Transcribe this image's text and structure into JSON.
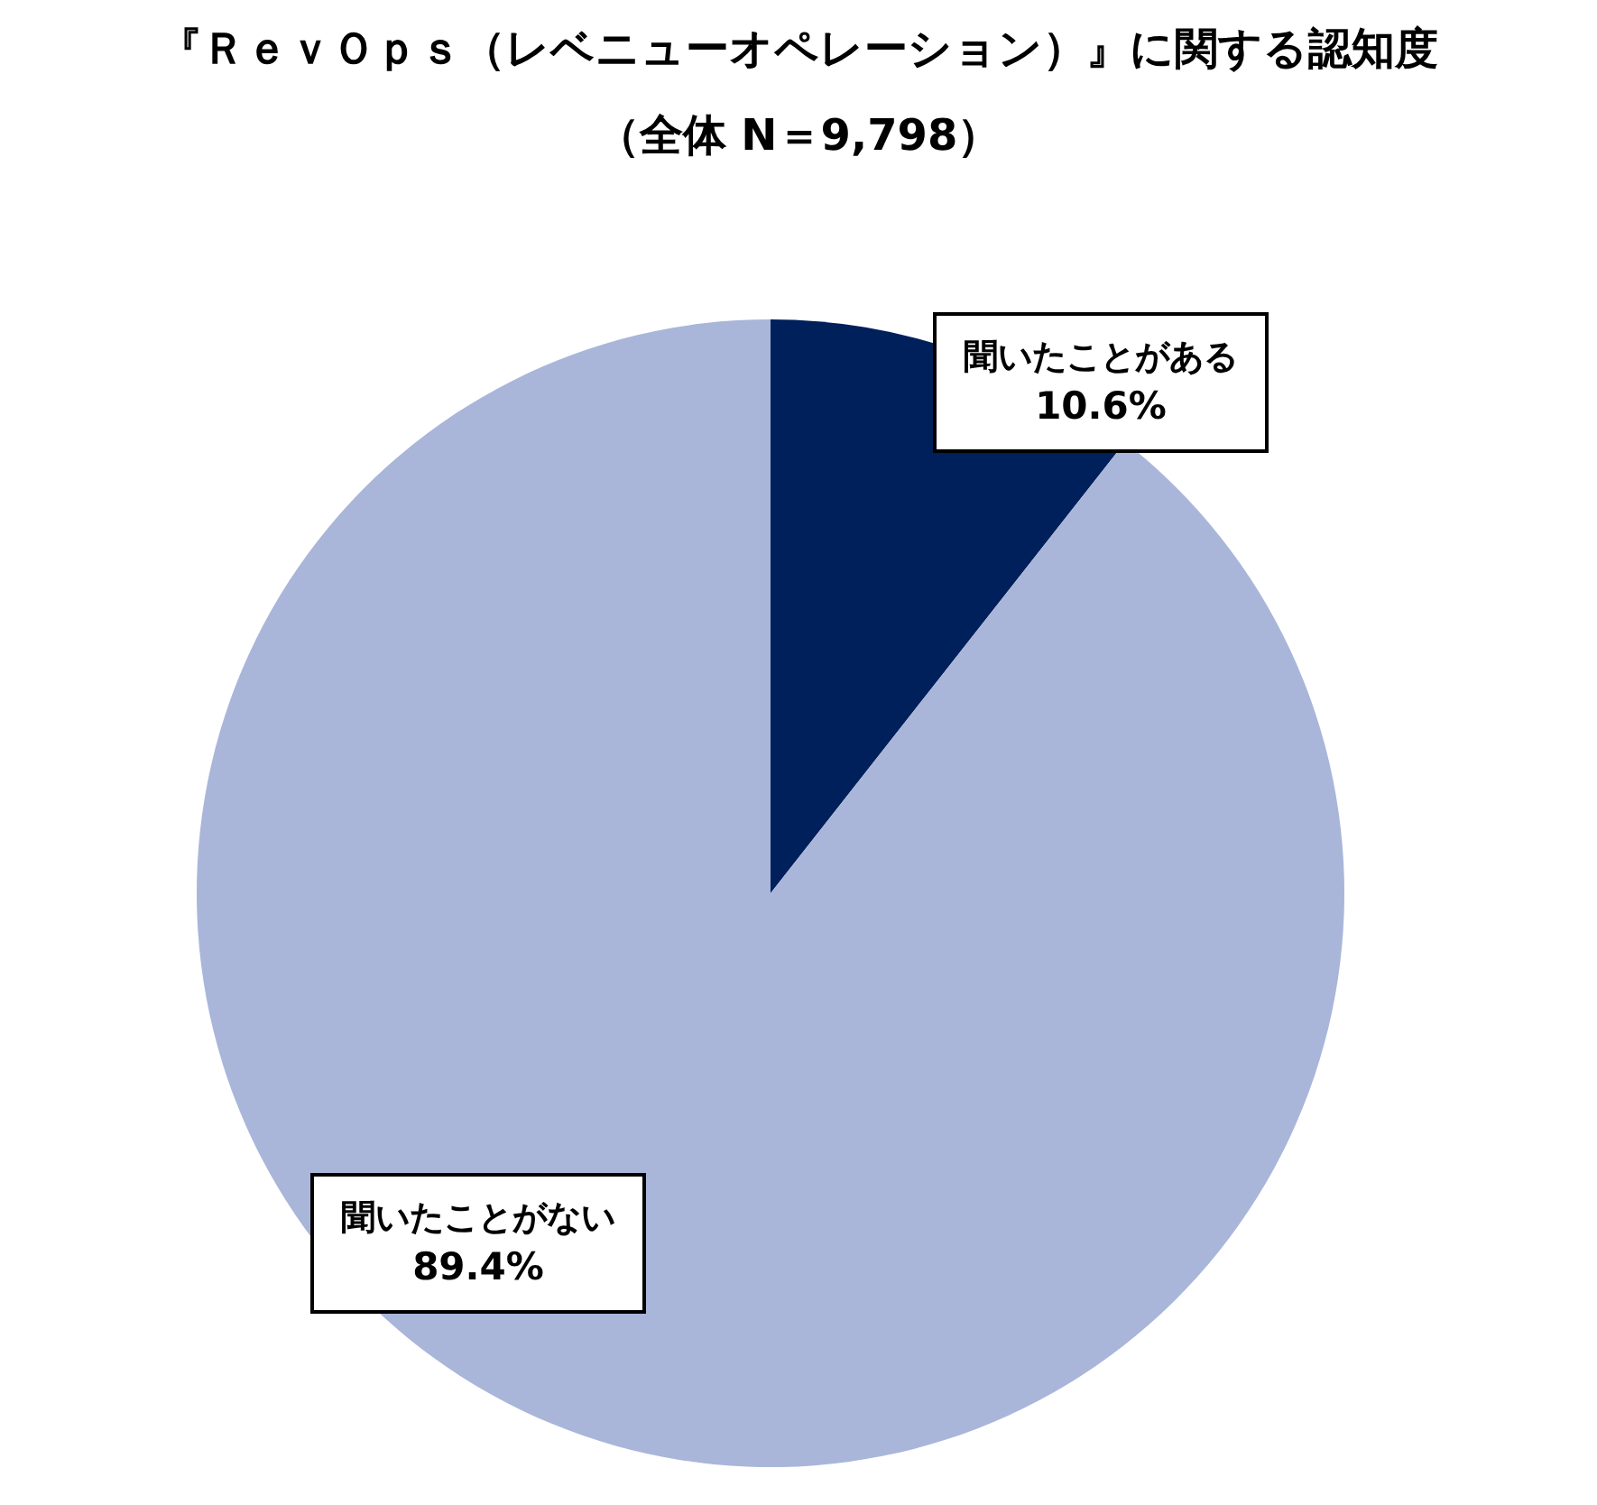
{
  "chart_data": {
    "type": "pie",
    "title": "『ＲｅｖＯｐｓ（レベニューオペレーション）』に関する認知度",
    "subtitle": "（全体 N＝9,798）",
    "categories": [
      "聞いたことがある",
      "聞いたことがない"
    ],
    "values": [
      10.6,
      89.4
    ],
    "value_labels": [
      "10.6%",
      "89.4%"
    ],
    "colors": [
      "#00205b",
      "#a9b6da"
    ]
  }
}
